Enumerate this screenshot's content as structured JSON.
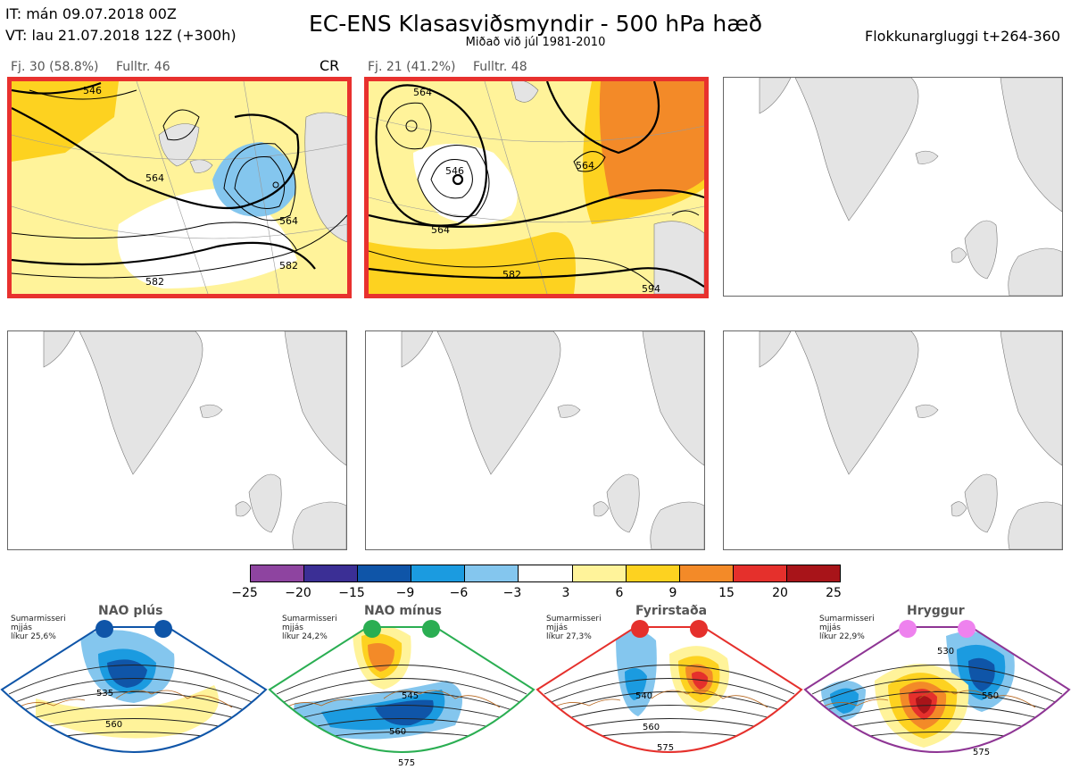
{
  "header": {
    "it": "IT: mán 09.07.2018 00Z",
    "vt": "VT: lau 21.07.2018 12Z  (+300h)",
    "title": "EC-ENS Klasasviðsmyndir - 500 hPa hæð",
    "subtitle": "Miðað við júl 1981-2010",
    "window": "Flokkunargluggi t+264-360"
  },
  "clusters": [
    {
      "count": "Fj. 30 (58.8%)",
      "control": "Fulltr. 46",
      "tag": "CR",
      "contours": [
        "546",
        "564",
        "564",
        "582",
        "582"
      ]
    },
    {
      "count": "Fj. 21 (41.2%)",
      "control": "Fulltr. 48",
      "tag": "",
      "contours": [
        "564",
        "546",
        "564",
        "564",
        "582",
        "594"
      ]
    }
  ],
  "colorbar": {
    "colors": [
      "#8e44a0",
      "#3b2f95",
      "#0f55a8",
      "#1b9be0",
      "#84c6ee",
      "#ffffff",
      "#fff39a",
      "#fdd220",
      "#f38a28",
      "#e5302c",
      "#a81419"
    ],
    "ticks": [
      "−25",
      "−20",
      "−15",
      "−9",
      "−6",
      "−3",
      "3",
      "6",
      "9",
      "15",
      "20",
      "25"
    ]
  },
  "regimes": [
    {
      "name": "NAO plús",
      "note": [
        "Sumarmisseri",
        "mjjás",
        "líkur 25,6%"
      ],
      "color": "#0f55a8",
      "contours": [
        "535",
        "560"
      ]
    },
    {
      "name": "NAO mínus",
      "note": [
        "Sumarmisseri",
        "mjjás",
        "líkur 24,2%"
      ],
      "color": "#2aae52",
      "contours": [
        "545",
        "560",
        "575"
      ]
    },
    {
      "name": "Fyrirstaða",
      "note": [
        "Sumarmisseri",
        "mjjás",
        "líkur 27,3%"
      ],
      "color": "#e5302c",
      "contours": [
        "540",
        "560",
        "575"
      ]
    },
    {
      "name": "Hryggur",
      "note": [
        "Sumarmisseri",
        "mjjás",
        "líkur 22,9%"
      ],
      "color": "#8e3594",
      "contours": [
        "530",
        "550",
        "575"
      ]
    }
  ]
}
